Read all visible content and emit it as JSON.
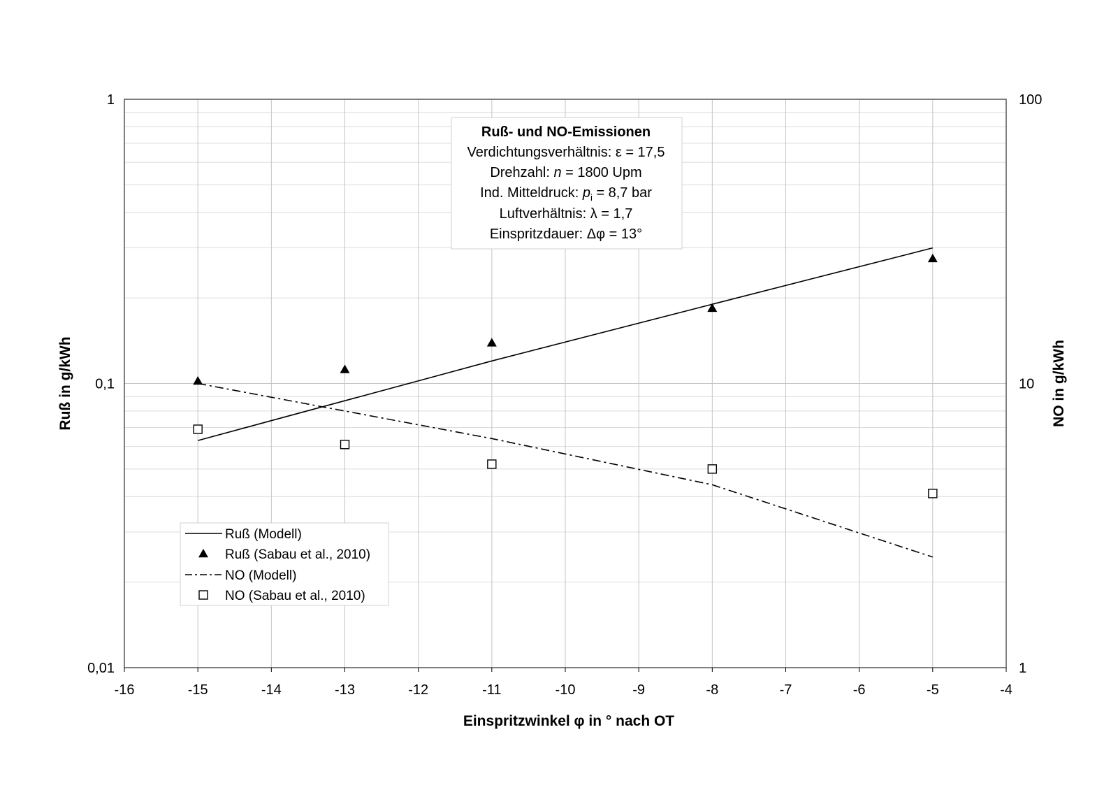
{
  "chart_data": {
    "type": "scatter",
    "xlabel": "Einspritzwinkel φ in ° nach OT",
    "ylabel_left": "Ruß in g/kWh",
    "ylabel_right": "NO in g/kWh",
    "xlim": [
      -16,
      -4
    ],
    "ylim_left": [
      0.01,
      1
    ],
    "ylim_right": [
      1,
      100
    ],
    "yscale": "log",
    "grid": true,
    "legend_position": "bottom-left",
    "x_ticks": [
      "-16",
      "-15",
      "-14",
      "-13",
      "-12",
      "-11",
      "-10",
      "-9",
      "-8",
      "-7",
      "-6",
      "-5",
      "-4"
    ],
    "y_left_ticks": [
      "1",
      "0,1",
      "0,01"
    ],
    "y_right_ticks": [
      "100",
      "10",
      "1"
    ],
    "info_box": {
      "title": "Ruß- und NO-Emissionen",
      "lines": [
        [
          "Verdichtungsverhältnis: ε = 17,5"
        ],
        [
          "Drehzahl: ",
          "n",
          "  = 1800 Upm"
        ],
        [
          "Ind. Mitteldruck: ",
          "p",
          "i",
          " = 8,7 bar"
        ],
        [
          "Luftverhältnis: λ = 1,7"
        ],
        [
          "Einspritzdauer: Δφ = 13°"
        ]
      ]
    },
    "series": [
      {
        "name": "Ruß (Modell)",
        "kind": "line",
        "style": "solid",
        "axis": "left",
        "x": [
          -15,
          -11,
          -8,
          -5
        ],
        "y": [
          0.063,
          0.12,
          0.19,
          0.3
        ]
      },
      {
        "name": "Ruß (Sabau et al., 2010)",
        "kind": "marker",
        "marker": "triangle",
        "axis": "left",
        "x": [
          -15,
          -13,
          -11,
          -8,
          -5
        ],
        "y": [
          0.102,
          0.112,
          0.139,
          0.184,
          0.275
        ]
      },
      {
        "name": "NO (Modell)",
        "kind": "line",
        "style": "dashdot",
        "axis": "right",
        "x": [
          -15,
          -13,
          -11,
          -8,
          -5
        ],
        "y": [
          10.0,
          8.0,
          6.4,
          4.4,
          2.45
        ]
      },
      {
        "name": "NO (Sabau et al., 2010)",
        "kind": "marker",
        "marker": "square",
        "axis": "right",
        "x": [
          -15,
          -13,
          -11,
          -8,
          -5
        ],
        "y": [
          6.9,
          6.1,
          5.2,
          5.0,
          4.1
        ]
      }
    ]
  }
}
